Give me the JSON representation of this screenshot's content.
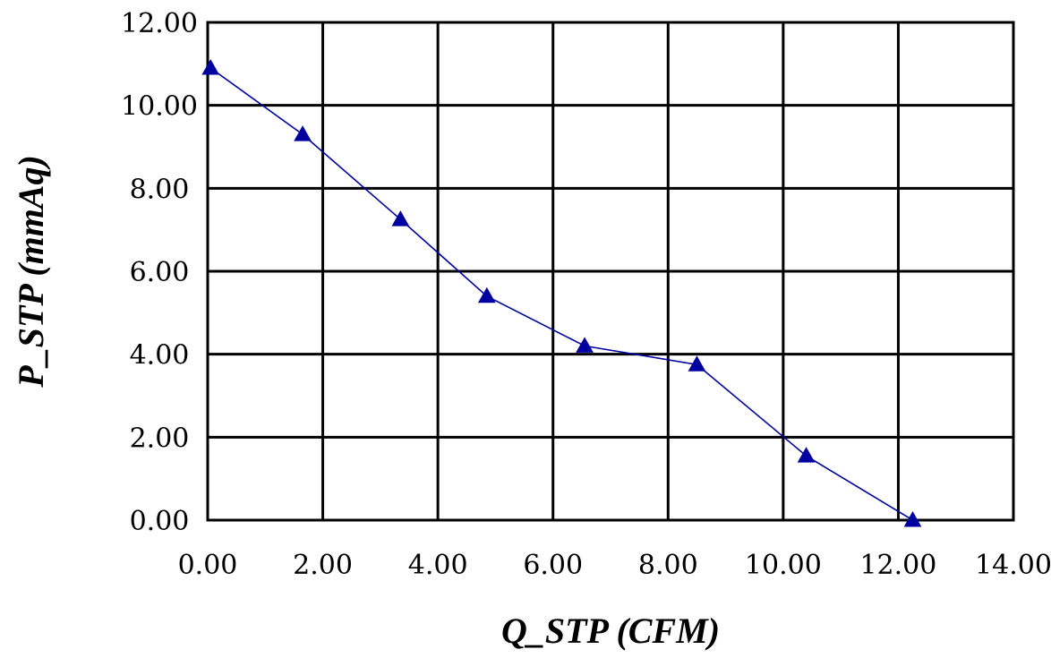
{
  "chart_data": {
    "type": "line",
    "xlabel": "Q_STP (CFM)",
    "ylabel": "P_STP (mmAq)",
    "xlim": [
      0,
      14
    ],
    "ylim": [
      0,
      12
    ],
    "x_ticks": [
      "0.00",
      "2.00",
      "4.00",
      "6.00",
      "8.00",
      "10.00",
      "12.00",
      "14.00"
    ],
    "y_ticks": [
      "0.00",
      "2.00",
      "4.00",
      "6.00",
      "8.00",
      "10.00",
      "12.00"
    ],
    "grid": true,
    "marker": "triangle",
    "series": [
      {
        "color": "#0000a0",
        "x": [
          0.05,
          1.65,
          3.35,
          4.85,
          6.55,
          8.5,
          10.4,
          12.25
        ],
        "y": [
          10.9,
          9.3,
          7.25,
          5.4,
          4.2,
          3.75,
          1.55,
          0.0
        ]
      }
    ]
  }
}
